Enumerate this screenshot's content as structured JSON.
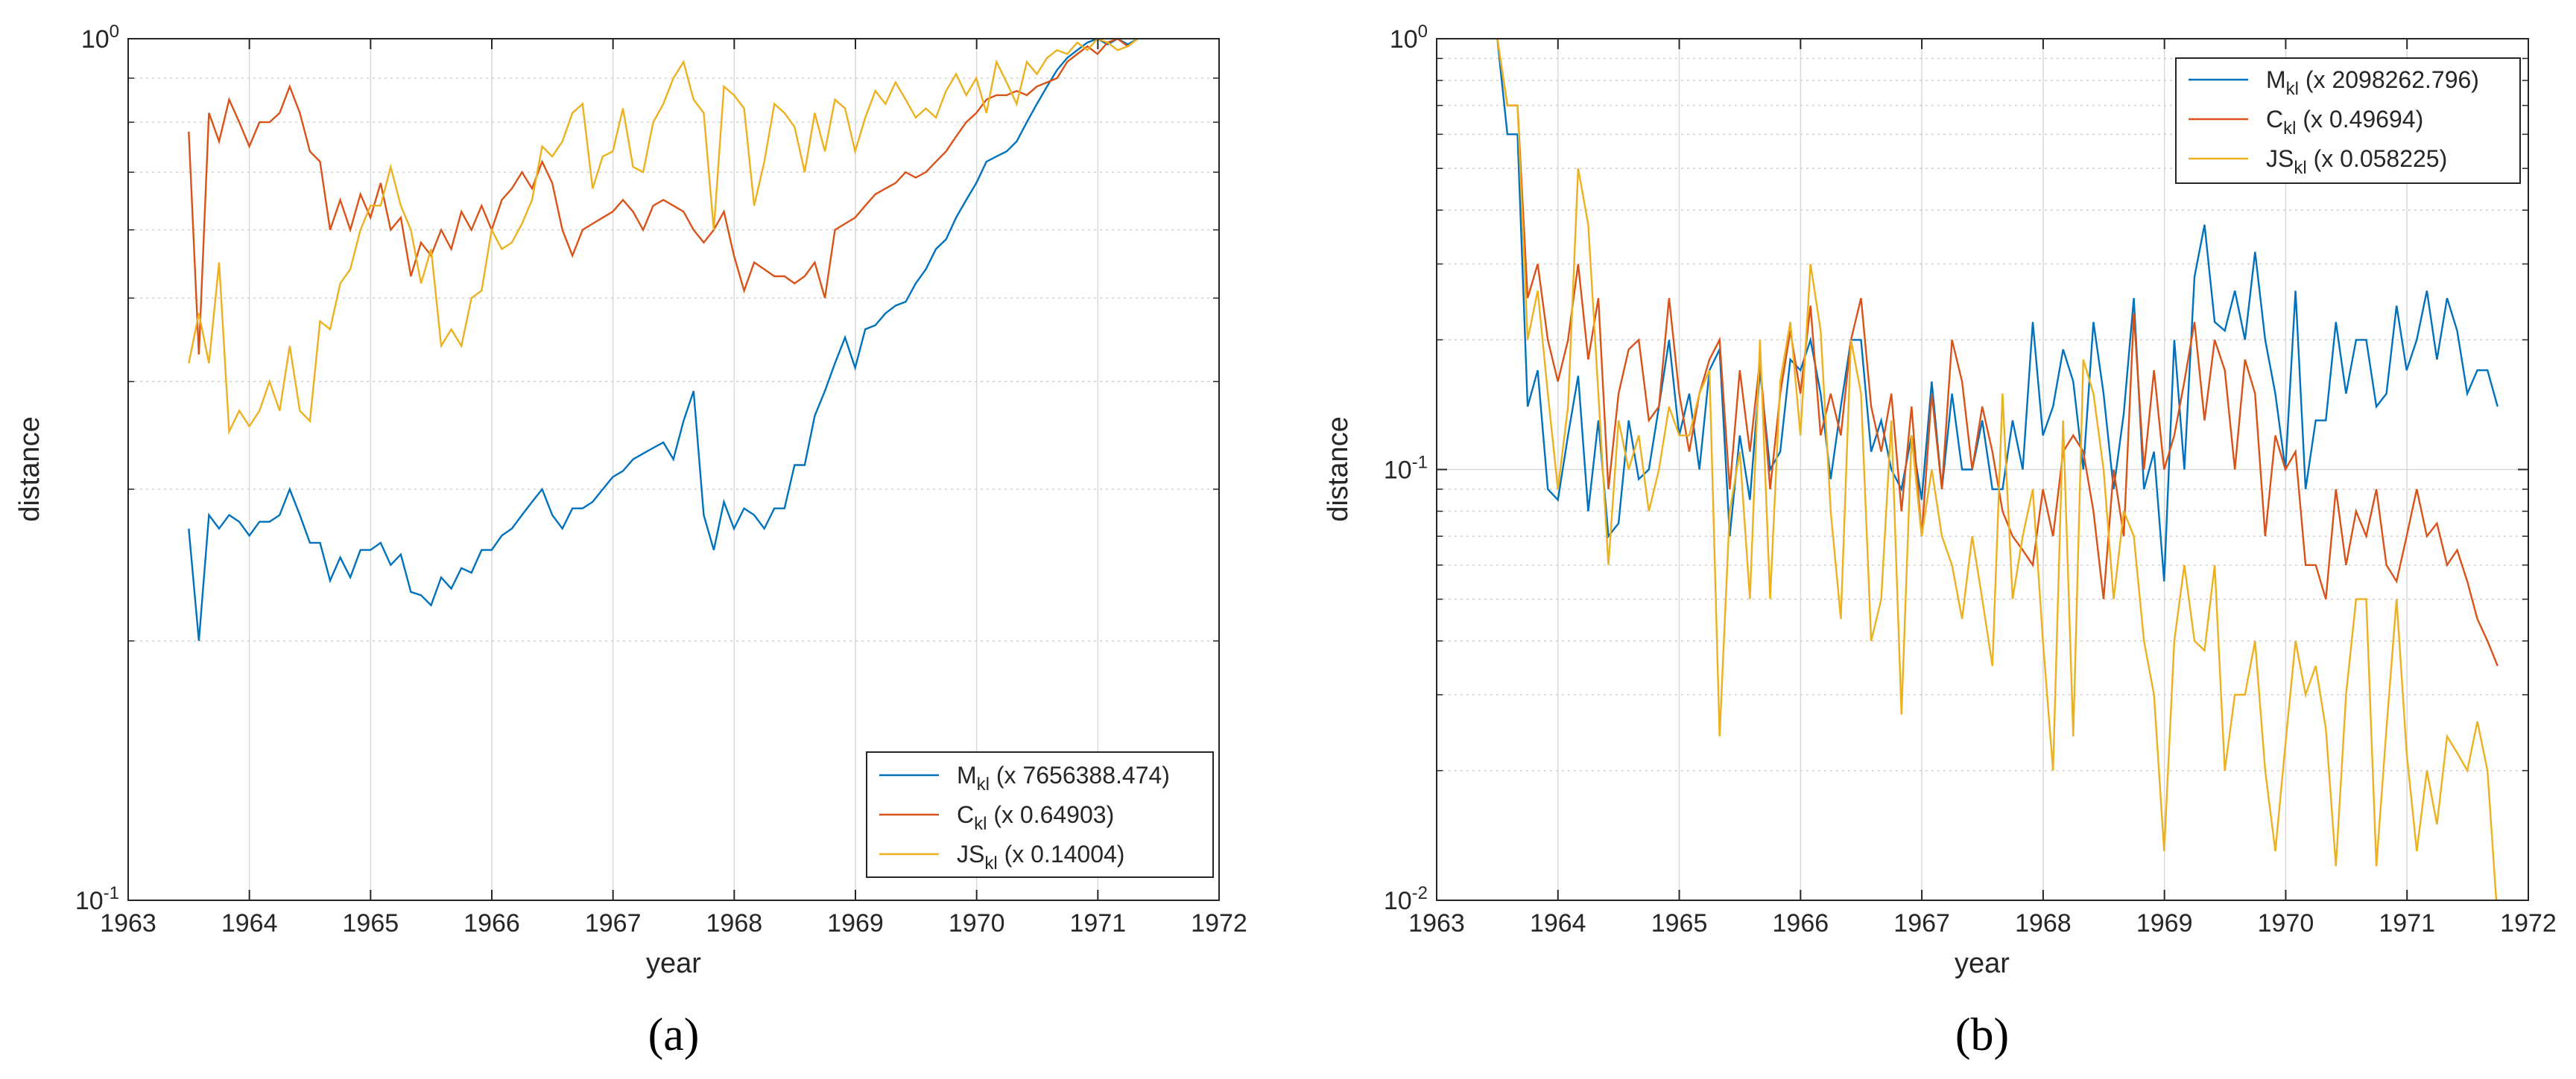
{
  "colors": {
    "M": "#0072BD",
    "C": "#D95319",
    "JS": "#EDB120",
    "grid": "#d9d9d9",
    "axis": "#262626"
  },
  "chart_data": [
    {
      "panel_label": "(a)",
      "type": "line",
      "yscale": "log",
      "xlabel": "year",
      "ylabel": "distance",
      "xlim": [
        1963,
        1972
      ],
      "ylim": [
        0.1,
        1
      ],
      "xticks": [
        "1963",
        "1964",
        "1965",
        "1966",
        "1967",
        "1968",
        "1969",
        "1970",
        "1971",
        "1972"
      ],
      "yticks": [
        {
          "base": "10",
          "exp": "-1"
        },
        {
          "base": "10",
          "exp": "0"
        }
      ],
      "legend": {
        "location": "bottom-right",
        "entries": [
          {
            "key": "M",
            "main": "M",
            "sub": "kl",
            "scale": "(x 7656388.474)"
          },
          {
            "key": "C",
            "main": "C",
            "sub": "kl",
            "scale": "(x 0.64903)"
          },
          {
            "key": "JS",
            "main": "JS",
            "sub": "kl",
            "scale": "(x 0.14004)"
          }
        ]
      },
      "x_start": 1963.5,
      "x_step": 0.0833,
      "series": [
        {
          "key": "M",
          "name": "Mkl",
          "values": [
            0.27,
            0.2,
            0.28,
            0.27,
            0.28,
            0.275,
            0.265,
            0.275,
            0.275,
            0.28,
            0.3,
            0.28,
            0.26,
            0.26,
            0.235,
            0.25,
            0.237,
            0.255,
            0.255,
            0.26,
            0.245,
            0.252,
            0.228,
            0.226,
            0.22,
            0.237,
            0.23,
            0.243,
            0.24,
            0.255,
            0.255,
            0.265,
            0.27,
            0.28,
            0.29,
            0.3,
            0.28,
            0.27,
            0.285,
            0.285,
            0.29,
            0.3,
            0.31,
            0.315,
            0.325,
            0.33,
            0.335,
            0.34,
            0.325,
            0.36,
            0.39,
            0.28,
            0.255,
            0.29,
            0.27,
            0.285,
            0.28,
            0.27,
            0.285,
            0.285,
            0.32,
            0.32,
            0.365,
            0.39,
            0.42,
            0.45,
            0.415,
            0.46,
            0.465,
            0.48,
            0.49,
            0.495,
            0.52,
            0.54,
            0.57,
            0.585,
            0.62,
            0.65,
            0.68,
            0.72,
            0.73,
            0.74,
            0.76,
            0.8,
            0.84,
            0.88,
            0.92,
            0.95,
            0.97,
            0.99,
            1.0,
            0.985,
            1.0,
            0.985,
            1.0
          ]
        },
        {
          "key": "C",
          "name": "Ckl",
          "values": [
            0.78,
            0.43,
            0.82,
            0.76,
            0.85,
            0.8,
            0.75,
            0.8,
            0.8,
            0.82,
            0.88,
            0.82,
            0.74,
            0.72,
            0.6,
            0.65,
            0.6,
            0.66,
            0.62,
            0.68,
            0.6,
            0.62,
            0.53,
            0.58,
            0.56,
            0.6,
            0.57,
            0.63,
            0.6,
            0.64,
            0.6,
            0.65,
            0.67,
            0.7,
            0.67,
            0.72,
            0.68,
            0.6,
            0.56,
            0.6,
            0.61,
            0.62,
            0.63,
            0.65,
            0.63,
            0.6,
            0.64,
            0.65,
            0.64,
            0.63,
            0.6,
            0.58,
            0.6,
            0.63,
            0.56,
            0.51,
            0.55,
            0.54,
            0.53,
            0.53,
            0.52,
            0.53,
            0.55,
            0.5,
            0.6,
            0.61,
            0.62,
            0.64,
            0.66,
            0.67,
            0.68,
            0.7,
            0.69,
            0.7,
            0.72,
            0.74,
            0.77,
            0.8,
            0.82,
            0.85,
            0.86,
            0.86,
            0.87,
            0.86,
            0.88,
            0.89,
            0.9,
            0.94,
            0.96,
            0.98,
            0.96,
            0.99,
            1.0,
            0.98,
            1.0
          ]
        },
        {
          "key": "JS",
          "name": "JSkl",
          "values": [
            0.42,
            0.48,
            0.42,
            0.55,
            0.35,
            0.37,
            0.355,
            0.37,
            0.4,
            0.37,
            0.44,
            0.37,
            0.36,
            0.47,
            0.46,
            0.52,
            0.54,
            0.6,
            0.64,
            0.64,
            0.71,
            0.64,
            0.6,
            0.52,
            0.57,
            0.44,
            0.46,
            0.44,
            0.5,
            0.51,
            0.6,
            0.57,
            0.58,
            0.61,
            0.65,
            0.75,
            0.73,
            0.76,
            0.82,
            0.84,
            0.67,
            0.73,
            0.74,
            0.83,
            0.71,
            0.7,
            0.8,
            0.84,
            0.9,
            0.94,
            0.85,
            0.82,
            0.6,
            0.88,
            0.86,
            0.83,
            0.64,
            0.72,
            0.84,
            0.82,
            0.79,
            0.7,
            0.82,
            0.74,
            0.85,
            0.83,
            0.74,
            0.81,
            0.87,
            0.84,
            0.89,
            0.85,
            0.81,
            0.83,
            0.81,
            0.87,
            0.91,
            0.86,
            0.9,
            0.82,
            0.94,
            0.89,
            0.84,
            0.94,
            0.91,
            0.95,
            0.97,
            0.96,
            0.99,
            0.97,
            1.0,
            0.99,
            0.97,
            0.98,
            1.0
          ]
        }
      ]
    },
    {
      "panel_label": "(b)",
      "type": "line",
      "yscale": "log",
      "xlabel": "year",
      "ylabel": "distance",
      "xlim": [
        1963,
        1972
      ],
      "ylim": [
        0.01,
        1
      ],
      "xticks": [
        "1963",
        "1964",
        "1965",
        "1966",
        "1967",
        "1968",
        "1969",
        "1970",
        "1971",
        "1972"
      ],
      "yticks": [
        {
          "base": "10",
          "exp": "-2"
        },
        {
          "base": "10",
          "exp": "-1"
        },
        {
          "base": "10",
          "exp": "0"
        }
      ],
      "legend": {
        "location": "top-right",
        "entries": [
          {
            "key": "M",
            "main": "M",
            "sub": "kl",
            "scale": "(x 2098262.796)"
          },
          {
            "key": "C",
            "main": "C",
            "sub": "kl",
            "scale": "(x 0.49694)"
          },
          {
            "key": "JS",
            "main": "JS",
            "sub": "kl",
            "scale": "(x 0.058225)"
          }
        ]
      },
      "x_start": 1963.5,
      "x_step": 0.0833,
      "series": [
        {
          "key": "M",
          "name": "Mkl",
          "values": [
            1.0,
            0.6,
            0.6,
            0.14,
            0.17,
            0.09,
            0.085,
            0.12,
            0.165,
            0.08,
            0.13,
            0.07,
            0.075,
            0.13,
            0.095,
            0.1,
            0.14,
            0.2,
            0.12,
            0.15,
            0.1,
            0.17,
            0.19,
            0.07,
            0.12,
            0.085,
            0.17,
            0.1,
            0.11,
            0.18,
            0.17,
            0.2,
            0.15,
            0.095,
            0.14,
            0.2,
            0.2,
            0.11,
            0.13,
            0.1,
            0.09,
            0.12,
            0.085,
            0.16,
            0.09,
            0.15,
            0.1,
            0.1,
            0.13,
            0.09,
            0.09,
            0.13,
            0.1,
            0.22,
            0.12,
            0.14,
            0.19,
            0.16,
            0.1,
            0.22,
            0.15,
            0.09,
            0.135,
            0.25,
            0.09,
            0.11,
            0.055,
            0.2,
            0.1,
            0.28,
            0.37,
            0.22,
            0.21,
            0.26,
            0.2,
            0.32,
            0.2,
            0.15,
            0.1,
            0.26,
            0.09,
            0.13,
            0.13,
            0.22,
            0.15,
            0.2,
            0.2,
            0.14,
            0.15,
            0.24,
            0.17,
            0.2,
            0.26,
            0.18,
            0.25,
            0.21,
            0.15,
            0.17,
            0.17,
            0.14
          ]
        },
        {
          "key": "C",
          "name": "Ckl",
          "values": [
            1.0,
            0.7,
            0.7,
            0.25,
            0.3,
            0.2,
            0.16,
            0.2,
            0.3,
            0.18,
            0.25,
            0.09,
            0.15,
            0.19,
            0.2,
            0.13,
            0.14,
            0.25,
            0.15,
            0.11,
            0.15,
            0.18,
            0.2,
            0.09,
            0.17,
            0.11,
            0.18,
            0.09,
            0.15,
            0.21,
            0.15,
            0.24,
            0.12,
            0.15,
            0.12,
            0.2,
            0.25,
            0.14,
            0.11,
            0.15,
            0.08,
            0.14,
            0.07,
            0.15,
            0.09,
            0.2,
            0.16,
            0.1,
            0.14,
            0.11,
            0.08,
            0.07,
            0.065,
            0.06,
            0.09,
            0.07,
            0.11,
            0.12,
            0.11,
            0.08,
            0.05,
            0.1,
            0.07,
            0.23,
            0.1,
            0.17,
            0.1,
            0.12,
            0.16,
            0.22,
            0.13,
            0.2,
            0.17,
            0.1,
            0.18,
            0.15,
            0.07,
            0.12,
            0.1,
            0.11,
            0.06,
            0.06,
            0.05,
            0.09,
            0.06,
            0.08,
            0.07,
            0.09,
            0.06,
            0.055,
            0.07,
            0.09,
            0.07,
            0.075,
            0.06,
            0.065,
            0.055,
            0.045,
            0.04,
            0.035
          ]
        },
        {
          "key": "JS",
          "name": "JSkl",
          "values": [
            1.0,
            0.7,
            0.7,
            0.2,
            0.26,
            0.15,
            0.09,
            0.14,
            0.5,
            0.37,
            0.15,
            0.06,
            0.13,
            0.1,
            0.12,
            0.08,
            0.1,
            0.14,
            0.12,
            0.12,
            0.15,
            0.17,
            0.024,
            0.08,
            0.11,
            0.05,
            0.2,
            0.05,
            0.16,
            0.22,
            0.12,
            0.3,
            0.21,
            0.08,
            0.045,
            0.2,
            0.15,
            0.04,
            0.05,
            0.13,
            0.027,
            0.12,
            0.07,
            0.1,
            0.07,
            0.06,
            0.045,
            0.07,
            0.05,
            0.035,
            0.15,
            0.05,
            0.07,
            0.09,
            0.04,
            0.02,
            0.13,
            0.024,
            0.18,
            0.15,
            0.1,
            0.05,
            0.08,
            0.07,
            0.04,
            0.03,
            0.013,
            0.04,
            0.06,
            0.04,
            0.038,
            0.06,
            0.02,
            0.03,
            0.03,
            0.04,
            0.02,
            0.013,
            0.023,
            0.04,
            0.03,
            0.035,
            0.025,
            0.012,
            0.03,
            0.05,
            0.05,
            0.012,
            0.025,
            0.05,
            0.022,
            0.013,
            0.02,
            0.015,
            0.024,
            0.022,
            0.02,
            0.026,
            0.02,
            0.009
          ]
        }
      ]
    }
  ]
}
